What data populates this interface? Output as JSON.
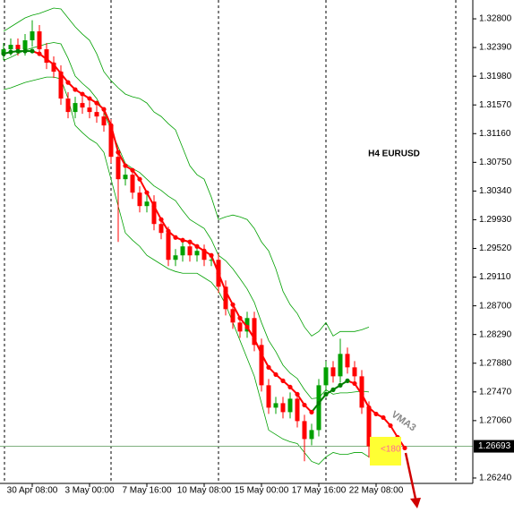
{
  "chart_data": {
    "type": "candlestick",
    "title": "H4 EURUSD",
    "annotation": "<180",
    "categories": [
      null,
      null,
      null,
      null,
      "30 Apr 08:00",
      null,
      null,
      null,
      null,
      null,
      null,
      null,
      "3 May 00:00",
      null,
      null,
      null,
      null,
      null,
      null,
      null,
      "7 May 16:00",
      null,
      null,
      null,
      null,
      null,
      null,
      null,
      "10 May 08:00",
      null,
      null,
      null,
      null,
      null,
      null,
      null,
      "15 May 00:00",
      null,
      null,
      null,
      null,
      null,
      null,
      null,
      "17 May 16:00",
      null,
      null,
      null,
      null,
      null,
      null,
      null,
      "22 May 08:00",
      null,
      null,
      null,
      null
    ],
    "open": [
      1.323,
      1.32365,
      1.32429,
      1.32365,
      1.32493,
      1.32621,
      1.32365,
      1.32173,
      1.32045,
      1.31661,
      1.31469,
      1.31597,
      1.31533,
      1.31469,
      1.31405,
      1.31277,
      1.30829,
      1.30509,
      1.30573,
      1.30317,
      1.30125,
      1.30189,
      1.29869,
      1.29741,
      1.29357,
      1.29421,
      1.29549,
      1.29421,
      1.29485,
      1.29357,
      1.29357,
      1.28973,
      1.28653,
      1.28461,
      1.28333,
      1.28525,
      1.28141,
      1.27565,
      1.27245,
      1.27309,
      1.27181,
      1.27373,
      1.27053,
      1.26797,
      1.26925,
      1.27565,
      1.27821,
      1.27693,
      1.28013,
      1.27821,
      1.27693,
      1.27245,
      null,
      null,
      null,
      null,
      null
    ],
    "high": [
      1.32455,
      1.32519,
      1.32519,
      1.32583,
      1.3278,
      1.32711,
      1.32455,
      1.32263,
      1.32135,
      1.31751,
      1.31687,
      1.31687,
      1.31623,
      1.31559,
      1.31495,
      1.31367,
      1.30919,
      1.30663,
      1.30663,
      1.30407,
      1.30279,
      1.30279,
      1.29959,
      1.29831,
      1.29511,
      1.29639,
      1.29639,
      1.29575,
      1.29575,
      1.29447,
      1.29447,
      1.29063,
      1.28743,
      1.28551,
      1.28615,
      1.28615,
      1.28231,
      1.27655,
      1.27399,
      1.27399,
      1.27463,
      1.27463,
      1.27143,
      1.27015,
      1.27655,
      1.27911,
      1.27911,
      1.2823,
      1.28103,
      1.27911,
      1.27783,
      1.27335,
      null,
      null,
      null,
      null,
      null
    ],
    "low": [
      1.3221,
      1.32275,
      1.32275,
      1.32275,
      1.32403,
      1.32275,
      1.32083,
      1.31955,
      1.31571,
      1.31379,
      1.31379,
      1.31443,
      1.31379,
      1.31315,
      1.31187,
      1.30739,
      1.29613,
      1.30419,
      1.30227,
      1.30035,
      1.30035,
      1.29779,
      1.29651,
      1.29267,
      1.29267,
      1.29331,
      1.29331,
      1.29331,
      1.29267,
      1.29267,
      1.28883,
      1.28563,
      1.28371,
      1.28243,
      1.28243,
      1.28051,
      1.27475,
      1.27155,
      1.27155,
      1.27091,
      1.27091,
      1.26963,
      1.2648,
      1.26707,
      1.26835,
      1.27475,
      1.27603,
      1.27603,
      1.27731,
      1.27603,
      1.27155,
      1.2653,
      null,
      null,
      null,
      null,
      null
    ],
    "close": [
      1.32365,
      1.32429,
      1.32365,
      1.32493,
      1.32621,
      1.32365,
      1.32173,
      1.32045,
      1.31661,
      1.31469,
      1.31597,
      1.31533,
      1.31469,
      1.31405,
      1.31277,
      1.30829,
      1.30509,
      1.30573,
      1.30317,
      1.30125,
      1.30189,
      1.29869,
      1.29741,
      1.29357,
      1.29421,
      1.29549,
      1.29421,
      1.29485,
      1.29357,
      1.29357,
      1.28973,
      1.28653,
      1.28461,
      1.28333,
      1.28525,
      1.28141,
      1.27565,
      1.27245,
      1.27309,
      1.27181,
      1.27373,
      1.27053,
      1.26797,
      1.26925,
      1.27565,
      1.27821,
      1.27693,
      1.28013,
      1.27821,
      1.27693,
      1.27245,
      1.26693,
      null,
      null,
      null,
      null,
      null
    ],
    "up_color": "#00a000",
    "down_color": "#ff0000",
    "series": [
      {
        "name": "VMA3",
        "color": "#ff0000",
        "rise_color": "#008000",
        "values": [
          1.32301,
          1.32326,
          1.32339,
          1.32339,
          1.32339,
          1.32301,
          1.32224,
          1.32147,
          1.32019,
          1.31891,
          1.31789,
          1.31725,
          1.31661,
          1.31597,
          1.31507,
          1.31277,
          1.30893,
          1.30701,
          1.30637,
          1.30509,
          1.30317,
          1.30125,
          1.29933,
          1.29766,
          1.29677,
          1.29638,
          1.29613,
          1.29549,
          1.29485,
          1.29421,
          1.29165,
          1.28909,
          1.28717,
          1.28525,
          1.28397,
          1.2823,
          1.28013,
          1.27821,
          1.27718,
          1.27629,
          1.27539,
          1.27437,
          1.27283,
          1.27181,
          1.27309,
          1.27437,
          1.27501,
          1.27565,
          1.27629,
          1.2759,
          1.27437,
          1.27245,
          1.27155,
          1.27104,
          1.26989,
          1.26822,
          1.26669
        ]
      }
    ],
    "bands": {
      "color": "#00a000",
      "upper": [
        1.32621,
        1.32685,
        1.32749,
        1.32813,
        1.32851,
        1.32877,
        1.32915,
        1.32954,
        1.32941,
        1.32813,
        1.32685,
        1.32582,
        1.32493,
        1.32301,
        1.32045,
        1.31917,
        1.31814,
        1.31725,
        1.31686,
        1.31661,
        1.31597,
        1.31469,
        1.31405,
        1.31302,
        1.31213,
        1.30957,
        1.30701,
        1.30573,
        1.30509,
        1.30253,
        1.29933,
        1.29971,
        1.29997,
        1.29971,
        1.29933,
        1.29805,
        1.29613,
        1.29485,
        1.29229,
        1.28909,
        1.28717,
        1.28589,
        1.28397,
        1.28269,
        1.28333,
        1.28461,
        1.28269,
        1.28333,
        1.28333,
        1.28333,
        1.28358,
        1.28397,
        null,
        null,
        null,
        null,
        null
      ],
      "middle": [
        1.32205,
        1.3225,
        1.32301,
        1.32352,
        1.32384,
        1.3241,
        1.32442,
        1.32461,
        1.32442,
        1.32237,
        1.31981,
        1.31878,
        1.31789,
        1.31661,
        1.31469,
        1.31213,
        1.3097,
        1.30733,
        1.30662,
        1.30605,
        1.30509,
        1.30413,
        1.30349,
        1.30266,
        1.30202,
        1.30061,
        1.29933,
        1.29869,
        1.29805,
        1.29645,
        1.29421,
        1.29344,
        1.29229,
        1.29088,
        1.28941,
        1.28749,
        1.28461,
        1.28205,
        1.28045,
        1.27853,
        1.27738,
        1.27661,
        1.27501,
        1.27373,
        1.27386,
        1.27501,
        1.27437,
        1.27456,
        1.27456,
        1.27469,
        1.27482,
        1.27469,
        null,
        null,
        null,
        null,
        null
      ],
      "lower": [
        1.31789,
        1.31814,
        1.31853,
        1.31891,
        1.31917,
        1.31942,
        1.31968,
        1.31968,
        1.31942,
        1.31661,
        1.31277,
        1.31174,
        1.31085,
        1.31021,
        1.30893,
        1.30509,
        1.30125,
        1.29741,
        1.29638,
        1.29549,
        1.29421,
        1.29357,
        1.29293,
        1.29229,
        1.2919,
        1.29165,
        1.29165,
        1.29165,
        1.29101,
        1.29037,
        1.28909,
        1.28717,
        1.28461,
        1.28205,
        1.27949,
        1.27693,
        1.27309,
        1.26925,
        1.26861,
        1.26797,
        1.26758,
        1.26733,
        1.26605,
        1.26477,
        1.26438,
        1.26541,
        1.26605,
        1.26579,
        1.26579,
        1.26605,
        1.26605,
        1.26541,
        null,
        null,
        null,
        null,
        null
      ]
    },
    "current_price": 1.26693,
    "current_price_color": "#80b080",
    "ylim": [
      1.26163,
      1.33069
    ],
    "yticks": [
      {
        "value": 1.328,
        "label": "1.32800"
      },
      {
        "value": 1.3239,
        "label": "1.32390"
      },
      {
        "value": 1.3198,
        "label": "1.31980"
      },
      {
        "value": 1.3157,
        "label": "1.31570"
      },
      {
        "value": 1.3116,
        "label": "1.31160"
      },
      {
        "value": 1.3075,
        "label": "1.30750"
      },
      {
        "value": 1.3034,
        "label": "1.30340"
      },
      {
        "value": 1.2993,
        "label": "1.29930"
      },
      {
        "value": 1.2952,
        "label": "1.29520"
      },
      {
        "value": 1.2911,
        "label": "1.29110"
      },
      {
        "value": 1.287,
        "label": "1.28700"
      },
      {
        "value": 1.2829,
        "label": "1.28290"
      },
      {
        "value": 1.2788,
        "label": "1.27880"
      },
      {
        "value": 1.2747,
        "label": "1.27470"
      },
      {
        "value": 1.2706,
        "label": "1.27060"
      },
      {
        "value": 1.2624,
        "label": "1.26240"
      }
    ],
    "grid": false
  }
}
